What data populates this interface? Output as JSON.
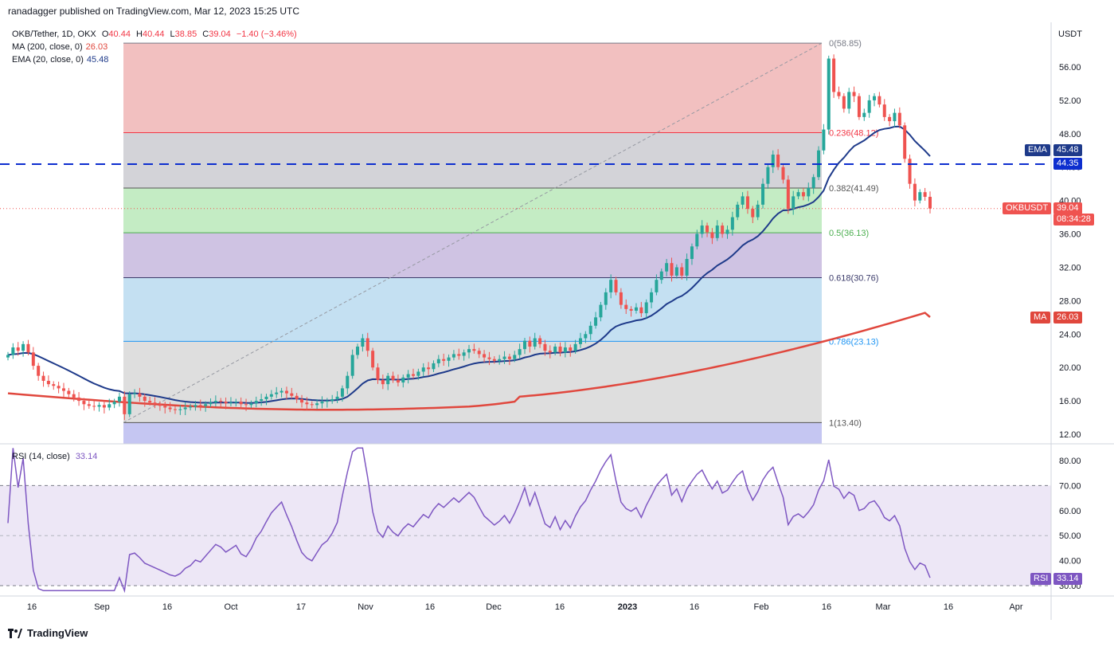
{
  "header": {
    "credit": "ranadagger published on TradingView.com, Mar 12, 2023 15:25 UTC"
  },
  "legend": {
    "symbol": "OKB/Tether, 1D, OKX",
    "ohlc": {
      "o_label": "O",
      "o": "40.44",
      "h_label": "H",
      "h": "40.44",
      "l_label": "L",
      "l": "38.85",
      "c_label": "C",
      "c": "39.04",
      "change": "−1.40 (−3.46%)"
    },
    "ma": {
      "label": "MA (200, close, 0)",
      "value": "26.03"
    },
    "ema": {
      "label": "EMA (20, close, 0)",
      "value": "45.48"
    }
  },
  "rsi_legend": {
    "label": "RSI (14, close)",
    "value": "33.14"
  },
  "axis": {
    "currency": "USDT",
    "price_ticks": [
      "56.00",
      "52.00",
      "48.00",
      "44.00",
      "40.00",
      "36.00",
      "32.00",
      "28.00",
      "24.00",
      "20.00",
      "16.00",
      "12.00"
    ],
    "rsi_ticks": [
      "80.00",
      "70.00",
      "60.00",
      "50.00",
      "40.00",
      "30.00"
    ],
    "x_ticks": [
      {
        "label": "16",
        "bold": false
      },
      {
        "label": "Sep",
        "bold": false
      },
      {
        "label": "16",
        "bold": false
      },
      {
        "label": "Oct",
        "bold": false
      },
      {
        "label": "17",
        "bold": false
      },
      {
        "label": "Nov",
        "bold": false
      },
      {
        "label": "16",
        "bold": false
      },
      {
        "label": "Dec",
        "bold": false
      },
      {
        "label": "16",
        "bold": false
      },
      {
        "label": "2023",
        "bold": true
      },
      {
        "label": "16",
        "bold": false
      },
      {
        "label": "Feb",
        "bold": false
      },
      {
        "label": "16",
        "bold": false
      },
      {
        "label": "Mar",
        "bold": false
      },
      {
        "label": "16",
        "bold": false
      },
      {
        "label": "Apr",
        "bold": false
      }
    ]
  },
  "badges": {
    "ema": {
      "name": "EMA",
      "value": "45.48"
    },
    "level": {
      "value": "44.35"
    },
    "last": {
      "name": "OKBUSDT",
      "value": "39.04",
      "countdown": "08:34:28"
    },
    "ma": {
      "name": "MA",
      "value": "26.03"
    },
    "rsi": {
      "name": "RSI",
      "value": "33.14"
    }
  },
  "fib_labels": [
    "0(58.85)",
    "0.236(48.12)",
    "0.382(41.49)",
    "0.5(36.13)",
    "0.618(30.76)",
    "0.786(23.13)",
    "1(13.40)"
  ],
  "footer": {
    "brand": "TradingView"
  },
  "colors": {
    "up": "#26a69a",
    "down": "#ef5350",
    "ema": "#1e3a8a",
    "ma": "#e0473d",
    "rsi": "#7e57c2",
    "level": "#0d2ecf"
  },
  "chart_data": {
    "type": "candlestick",
    "price_range": [
      12.0,
      58.85
    ],
    "horizontal_level": 44.35,
    "fibonacci": {
      "high": 58.85,
      "low": 13.4,
      "levels": [
        0,
        0.236,
        0.382,
        0.5,
        0.618,
        0.786,
        1
      ],
      "values": [
        58.85,
        48.12,
        41.49,
        36.13,
        30.76,
        23.13,
        13.4
      ]
    },
    "close_series": [
      21.5,
      22.4,
      22.0,
      22.8,
      21.8,
      20.2,
      19.0,
      18.4,
      18.0,
      17.8,
      17.5,
      17.2,
      16.8,
      16.4,
      16.0,
      15.6,
      15.4,
      15.3,
      15.5,
      15.2,
      15.6,
      15.9,
      16.5,
      14.4,
      16.8,
      16.9,
      16.5,
      16.0,
      15.8,
      15.6,
      15.4,
      15.2,
      15.0,
      14.9,
      15.0,
      15.2,
      15.3,
      15.5,
      15.4,
      15.6,
      15.8,
      16.0,
      15.9,
      15.7,
      15.8,
      15.9,
      15.6,
      15.5,
      15.7,
      16.0,
      16.2,
      16.5,
      16.8,
      17.0,
      17.2,
      16.9,
      16.6,
      16.2,
      15.8,
      15.6,
      15.5,
      15.7,
      15.9,
      16.0,
      16.2,
      16.5,
      17.5,
      19.0,
      21.5,
      22.5,
      23.5,
      22.0,
      20.0,
      18.5,
      18.0,
      19.0,
      18.5,
      18.2,
      18.8,
      19.2,
      19.0,
      19.5,
      20.0,
      19.8,
      20.5,
      21.0,
      20.8,
      21.2,
      21.6,
      21.4,
      21.8,
      22.2,
      22.0,
      21.6,
      21.2,
      21.0,
      20.8,
      21.0,
      21.3,
      21.0,
      21.5,
      22.2,
      23.2,
      22.5,
      23.5,
      22.8,
      22.0,
      21.8,
      22.5,
      21.8,
      22.4,
      22.0,
      22.8,
      23.5,
      24.0,
      25.0,
      26.0,
      27.5,
      29.0,
      30.5,
      29.0,
      27.5,
      27.0,
      26.8,
      27.2,
      26.5,
      27.8,
      29.0,
      30.5,
      31.5,
      32.5,
      31.0,
      32.0,
      31.0,
      33.0,
      34.5,
      36.0,
      37.0,
      36.2,
      35.5,
      37.0,
      36.0,
      36.5,
      38.0,
      39.5,
      40.5,
      39.0,
      38.0,
      39.5,
      42.0,
      44.0,
      45.5,
      44.0,
      42.5,
      39.0,
      40.5,
      41.0,
      40.5,
      41.5,
      42.8,
      46.0,
      48.5,
      57.0,
      53.0,
      52.5,
      51.0,
      53.0,
      52.5,
      50.0,
      50.5,
      52.0,
      52.5,
      51.5,
      50.0,
      49.5,
      50.5,
      49.0,
      45.0,
      42.0,
      40.0,
      41.0,
      40.44,
      39.04
    ],
    "ema20_last": 45.48,
    "ma200_last": 26.03,
    "last_close": 39.04,
    "rsi": {
      "range": [
        28,
        85
      ],
      "bands": [
        30,
        70
      ],
      "last": 33.14
    }
  }
}
